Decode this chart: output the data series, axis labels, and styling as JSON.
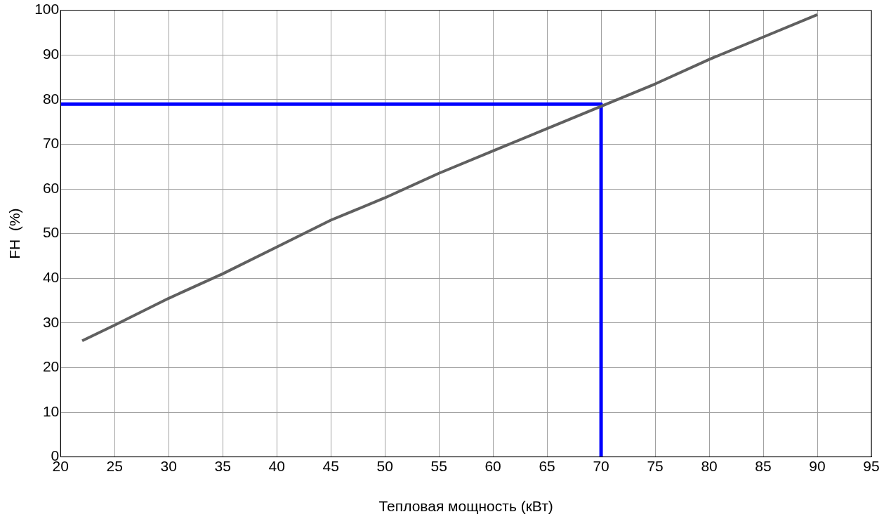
{
  "chart_data": {
    "type": "line",
    "xlabel": "Тепловая мощность (кВт)",
    "ylabel": "FH  (%)",
    "xlim": [
      20,
      95
    ],
    "ylim": [
      0,
      100
    ],
    "xticks": [
      20,
      25,
      30,
      35,
      40,
      45,
      50,
      55,
      60,
      65,
      70,
      75,
      80,
      85,
      90,
      95
    ],
    "yticks": [
      0,
      10,
      20,
      30,
      40,
      50,
      60,
      70,
      80,
      90,
      100
    ],
    "grid": true,
    "legend": false,
    "marker": "none",
    "line_style": "solid",
    "series": [
      {
        "color": "#606060",
        "x": [
          22,
          25,
          30,
          35,
          40,
          45,
          50,
          55,
          60,
          65,
          70,
          75,
          80,
          85,
          90
        ],
        "values": [
          26,
          29.5,
          35.5,
          41,
          47,
          53,
          58,
          63.5,
          68.5,
          73.5,
          78.5,
          83.5,
          89,
          94,
          99
        ]
      },
      {
        "color": "#0000ff",
        "x": [
          20,
          70,
          70
        ],
        "values": [
          79,
          79,
          0
        ]
      }
    ]
  }
}
